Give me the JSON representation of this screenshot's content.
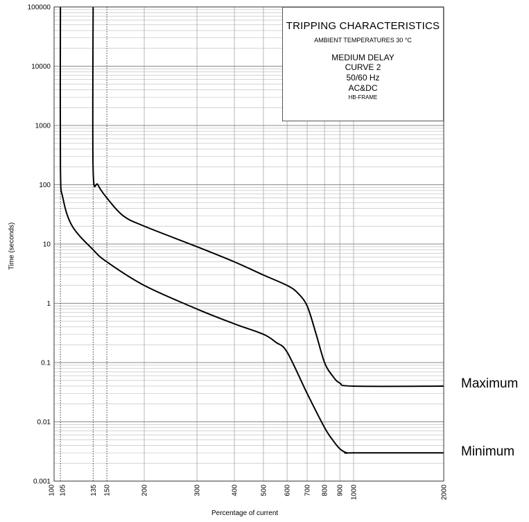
{
  "chart_data": {
    "type": "line",
    "title": "TRIPPING CHARACTERISTICS",
    "subtitle": "AMBIENT TEMPERATURES 30 °C",
    "info_lines": [
      "MEDIUM DELAY",
      "CURVE 2",
      "50/60 Hz",
      "AC&DC",
      "HB-FRAME"
    ],
    "xlabel": "Percentage of current",
    "ylabel": "Time (seconds)",
    "xscale": "log",
    "yscale": "log",
    "xlim": [
      100,
      2000
    ],
    "ylim": [
      0.001,
      100000
    ],
    "x_ticks": [
      "100",
      "105",
      "135",
      "150",
      "200",
      "300",
      "400",
      "500",
      "600",
      "700",
      "800",
      "900",
      "1000",
      "2000"
    ],
    "y_ticks": [
      "0.001",
      "0.01",
      "0.1",
      "1",
      "10",
      "100",
      "1000",
      "10000",
      "100000"
    ],
    "dotted_reference_lines_x": [
      105,
      135,
      150
    ],
    "grid": true,
    "series": [
      {
        "name": "Maximum",
        "x": [
          135,
          135,
          140,
          150,
          170,
          200,
          300,
          400,
          500,
          600,
          650,
          700,
          750,
          800,
          850,
          900,
          1000,
          2000
        ],
        "y": [
          100000,
          180,
          100,
          60,
          30,
          20,
          9,
          5,
          3,
          2,
          1.5,
          0.9,
          0.3,
          0.1,
          0.06,
          0.045,
          0.04,
          0.04
        ]
      },
      {
        "name": "Minimum",
        "x": [
          105,
          105,
          107,
          115,
          135,
          150,
          200,
          300,
          400,
          500,
          550,
          600,
          700,
          800,
          850,
          900,
          950,
          1000,
          2000
        ],
        "y": [
          100000,
          200,
          60,
          20,
          8,
          5,
          2,
          0.8,
          0.45,
          0.3,
          0.22,
          0.15,
          0.03,
          0.008,
          0.005,
          0.0035,
          0.003,
          0.003,
          0.003
        ]
      }
    ]
  }
}
